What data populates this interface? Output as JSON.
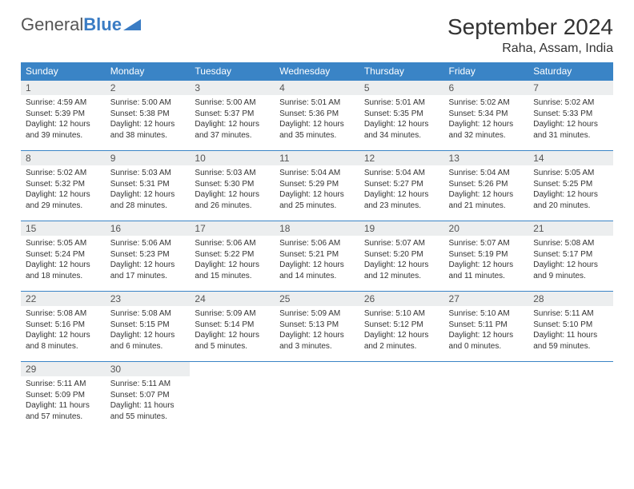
{
  "logo": {
    "text_gray": "General",
    "text_blue": "Blue"
  },
  "title": "September 2024",
  "location": "Raha, Assam, India",
  "colors": {
    "header_bg": "#3a84c6",
    "header_text": "#ffffff",
    "daynum_bg": "#eceeef",
    "border": "#3a84c6"
  },
  "day_names": [
    "Sunday",
    "Monday",
    "Tuesday",
    "Wednesday",
    "Thursday",
    "Friday",
    "Saturday"
  ],
  "weeks": [
    [
      {
        "n": "1",
        "sr": "4:59 AM",
        "ss": "5:39 PM",
        "dl": "12 hours and 39 minutes."
      },
      {
        "n": "2",
        "sr": "5:00 AM",
        "ss": "5:38 PM",
        "dl": "12 hours and 38 minutes."
      },
      {
        "n": "3",
        "sr": "5:00 AM",
        "ss": "5:37 PM",
        "dl": "12 hours and 37 minutes."
      },
      {
        "n": "4",
        "sr": "5:01 AM",
        "ss": "5:36 PM",
        "dl": "12 hours and 35 minutes."
      },
      {
        "n": "5",
        "sr": "5:01 AM",
        "ss": "5:35 PM",
        "dl": "12 hours and 34 minutes."
      },
      {
        "n": "6",
        "sr": "5:02 AM",
        "ss": "5:34 PM",
        "dl": "12 hours and 32 minutes."
      },
      {
        "n": "7",
        "sr": "5:02 AM",
        "ss": "5:33 PM",
        "dl": "12 hours and 31 minutes."
      }
    ],
    [
      {
        "n": "8",
        "sr": "5:02 AM",
        "ss": "5:32 PM",
        "dl": "12 hours and 29 minutes."
      },
      {
        "n": "9",
        "sr": "5:03 AM",
        "ss": "5:31 PM",
        "dl": "12 hours and 28 minutes."
      },
      {
        "n": "10",
        "sr": "5:03 AM",
        "ss": "5:30 PM",
        "dl": "12 hours and 26 minutes."
      },
      {
        "n": "11",
        "sr": "5:04 AM",
        "ss": "5:29 PM",
        "dl": "12 hours and 25 minutes."
      },
      {
        "n": "12",
        "sr": "5:04 AM",
        "ss": "5:27 PM",
        "dl": "12 hours and 23 minutes."
      },
      {
        "n": "13",
        "sr": "5:04 AM",
        "ss": "5:26 PM",
        "dl": "12 hours and 21 minutes."
      },
      {
        "n": "14",
        "sr": "5:05 AM",
        "ss": "5:25 PM",
        "dl": "12 hours and 20 minutes."
      }
    ],
    [
      {
        "n": "15",
        "sr": "5:05 AM",
        "ss": "5:24 PM",
        "dl": "12 hours and 18 minutes."
      },
      {
        "n": "16",
        "sr": "5:06 AM",
        "ss": "5:23 PM",
        "dl": "12 hours and 17 minutes."
      },
      {
        "n": "17",
        "sr": "5:06 AM",
        "ss": "5:22 PM",
        "dl": "12 hours and 15 minutes."
      },
      {
        "n": "18",
        "sr": "5:06 AM",
        "ss": "5:21 PM",
        "dl": "12 hours and 14 minutes."
      },
      {
        "n": "19",
        "sr": "5:07 AM",
        "ss": "5:20 PM",
        "dl": "12 hours and 12 minutes."
      },
      {
        "n": "20",
        "sr": "5:07 AM",
        "ss": "5:19 PM",
        "dl": "12 hours and 11 minutes."
      },
      {
        "n": "21",
        "sr": "5:08 AM",
        "ss": "5:17 PM",
        "dl": "12 hours and 9 minutes."
      }
    ],
    [
      {
        "n": "22",
        "sr": "5:08 AM",
        "ss": "5:16 PM",
        "dl": "12 hours and 8 minutes."
      },
      {
        "n": "23",
        "sr": "5:08 AM",
        "ss": "5:15 PM",
        "dl": "12 hours and 6 minutes."
      },
      {
        "n": "24",
        "sr": "5:09 AM",
        "ss": "5:14 PM",
        "dl": "12 hours and 5 minutes."
      },
      {
        "n": "25",
        "sr": "5:09 AM",
        "ss": "5:13 PM",
        "dl": "12 hours and 3 minutes."
      },
      {
        "n": "26",
        "sr": "5:10 AM",
        "ss": "5:12 PM",
        "dl": "12 hours and 2 minutes."
      },
      {
        "n": "27",
        "sr": "5:10 AM",
        "ss": "5:11 PM",
        "dl": "12 hours and 0 minutes."
      },
      {
        "n": "28",
        "sr": "5:11 AM",
        "ss": "5:10 PM",
        "dl": "11 hours and 59 minutes."
      }
    ],
    [
      {
        "n": "29",
        "sr": "5:11 AM",
        "ss": "5:09 PM",
        "dl": "11 hours and 57 minutes."
      },
      {
        "n": "30",
        "sr": "5:11 AM",
        "ss": "5:07 PM",
        "dl": "11 hours and 55 minutes."
      },
      null,
      null,
      null,
      null,
      null
    ]
  ],
  "labels": {
    "sunrise": "Sunrise: ",
    "sunset": "Sunset: ",
    "daylight": "Daylight: "
  }
}
